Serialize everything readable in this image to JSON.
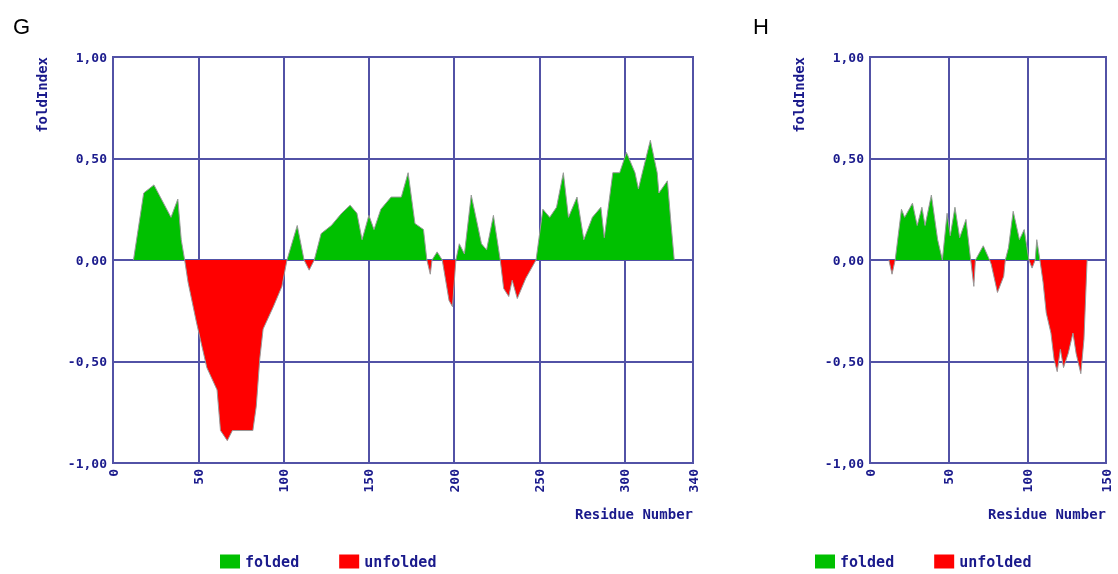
{
  "chart_data": [
    {
      "type": "area",
      "title": "G",
      "xlabel": "Residue Number",
      "ylabel": "foldIndex",
      "legend": "bottom",
      "grid": true,
      "marker": "none",
      "x": [
        12,
        18,
        24,
        29,
        34,
        38,
        40,
        42,
        44,
        49,
        55,
        61,
        63,
        67,
        70,
        82,
        84,
        86,
        88,
        94,
        99,
        102,
        108,
        112,
        115,
        118,
        122,
        128,
        134,
        139,
        143,
        146,
        150,
        153,
        157,
        163,
        169,
        173,
        177,
        182,
        184,
        186,
        187,
        190,
        193,
        197,
        199,
        201,
        203,
        206,
        210,
        216,
        219,
        223,
        227,
        229,
        232,
        234,
        237,
        242,
        248,
        252,
        256,
        260,
        264,
        267,
        272,
        276,
        281,
        286,
        288,
        293,
        297,
        301,
        306,
        308,
        310,
        315,
        319,
        320,
        325,
        327,
        329
      ],
      "series": [
        {
          "name": "folded",
          "color": "#00c000",
          "values": [
            0,
            0.33,
            0.37,
            0.29,
            0.21,
            0.3,
            0.1,
            0,
            null,
            null,
            null,
            null,
            null,
            null,
            null,
            null,
            null,
            null,
            null,
            null,
            null,
            0,
            0.17,
            0,
            null,
            0,
            0.13,
            0.17,
            0.23,
            0.27,
            0.23,
            0.1,
            0.22,
            0.15,
            0.25,
            0.31,
            0.31,
            0.43,
            0.18,
            0.15,
            0,
            null,
            0,
            0.04,
            0,
            null,
            null,
            0,
            0.08,
            0.03,
            0.32,
            0.08,
            0.05,
            0.22,
            0,
            null,
            null,
            null,
            null,
            null,
            0,
            0.25,
            0.21,
            0.26,
            0.43,
            0.21,
            0.31,
            0.1,
            0.21,
            0.26,
            0.11,
            0.43,
            0.43,
            0.53,
            0.43,
            0.35,
            0.42,
            0.59,
            0.43,
            0.33,
            0.39,
            0.19,
            0
          ]
        },
        {
          "name": "unfolded",
          "color": "#ff0000",
          "values": [
            null,
            null,
            null,
            null,
            null,
            null,
            null,
            0,
            -0.11,
            -0.31,
            -0.53,
            -0.64,
            -0.84,
            -0.89,
            -0.84,
            -0.84,
            -0.72,
            -0.49,
            -0.34,
            -0.23,
            -0.13,
            0,
            null,
            0,
            -0.05,
            0,
            null,
            null,
            null,
            null,
            null,
            null,
            null,
            null,
            null,
            null,
            null,
            null,
            null,
            null,
            0,
            -0.07,
            0,
            null,
            0,
            -0.2,
            -0.23,
            0,
            null,
            null,
            null,
            null,
            null,
            null,
            0,
            -0.14,
            -0.18,
            -0.1,
            -0.19,
            -0.09,
            0,
            null,
            null,
            null,
            null,
            null,
            null,
            null,
            null,
            null,
            null,
            null,
            null,
            null,
            null,
            null,
            null,
            null,
            null,
            null,
            null,
            null,
            null
          ]
        }
      ],
      "xlim": [
        0,
        340
      ],
      "xticks": [
        0,
        50,
        100,
        150,
        200,
        250,
        300,
        340
      ],
      "ylim": [
        -1,
        1
      ],
      "yticks": [
        {
          "value": -1,
          "label": "-1,00"
        },
        {
          "value": -0.5,
          "label": "-0,50"
        },
        {
          "value": 0,
          "label": "0,00"
        },
        {
          "value": 0.5,
          "label": "0,50"
        },
        {
          "value": 1,
          "label": "1,00"
        }
      ]
    },
    {
      "type": "area",
      "title": "H",
      "xlabel": "Residue Number",
      "ylabel": "foldIndex",
      "legend": "bottom",
      "grid": true,
      "marker": "none",
      "x": [
        12,
        14,
        16,
        20,
        22,
        27,
        30,
        33,
        35,
        39,
        43,
        46,
        49,
        51,
        54,
        57,
        61,
        64,
        66,
        67,
        72,
        76,
        77,
        81,
        85,
        86,
        88,
        91,
        95,
        98,
        101,
        103,
        105,
        106,
        108,
        110,
        112,
        115,
        117,
        119,
        121,
        123,
        126,
        129,
        131,
        134,
        136,
        138
      ],
      "series": [
        {
          "name": "folded",
          "color": "#00c000",
          "values": [
            null,
            null,
            0,
            0.25,
            0.21,
            0.28,
            0.17,
            0.26,
            0.17,
            0.32,
            0.1,
            0,
            0.23,
            0.12,
            0.26,
            0.11,
            0.2,
            0,
            null,
            0,
            0.07,
            0,
            null,
            null,
            null,
            0,
            0.06,
            0.24,
            0.1,
            0.15,
            0,
            null,
            0,
            0.1,
            0,
            null,
            null,
            null,
            null,
            null,
            null,
            null,
            null,
            null,
            null,
            null,
            null,
            null
          ]
        },
        {
          "name": "unfolded",
          "color": "#ff0000",
          "values": [
            0,
            -0.07,
            0,
            null,
            null,
            null,
            null,
            null,
            null,
            null,
            null,
            null,
            null,
            null,
            null,
            null,
            null,
            0,
            -0.13,
            0,
            null,
            0,
            -0.02,
            -0.16,
            -0.08,
            0,
            null,
            null,
            null,
            null,
            0,
            -0.04,
            0,
            null,
            0,
            -0.11,
            -0.26,
            -0.36,
            -0.49,
            -0.55,
            -0.44,
            -0.53,
            -0.46,
            -0.36,
            -0.46,
            -0.56,
            -0.39,
            0
          ]
        }
      ],
      "xlim": [
        0,
        150
      ],
      "xticks": [
        0,
        50,
        100,
        150
      ],
      "ylim": [
        -1,
        1
      ],
      "yticks": [
        {
          "value": -1,
          "label": "-1,00"
        },
        {
          "value": -0.5,
          "label": "-0,50"
        },
        {
          "value": 0,
          "label": "0,00"
        },
        {
          "value": 0.5,
          "label": "0,50"
        },
        {
          "value": 1,
          "label": "1,00"
        }
      ]
    }
  ]
}
